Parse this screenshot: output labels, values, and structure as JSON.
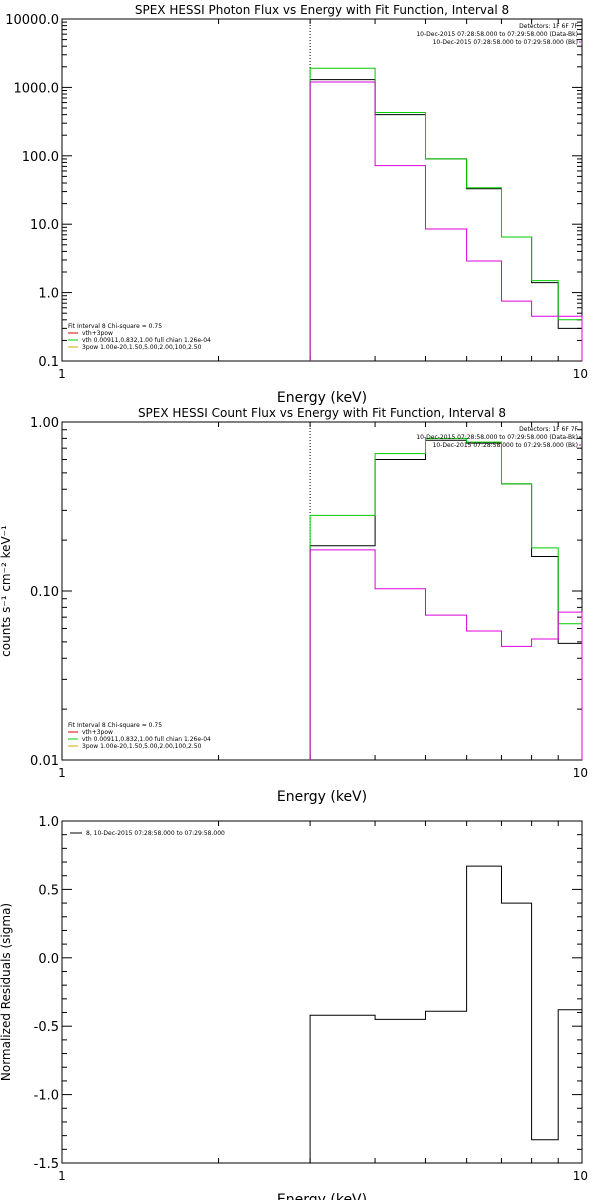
{
  "chart_data": [
    {
      "type": "line",
      "title": "SPEX HESSI Photon Flux vs Energy with Fit Function, Interval 8",
      "xlabel": "Energy (keV)",
      "ylabel": "",
      "xscale": "log",
      "yscale": "log",
      "xlim": [
        1,
        10
      ],
      "ylim": [
        0.1,
        10000
      ],
      "x_ticks": [
        {
          "v": 1,
          "label": "1"
        },
        {
          "v": 10,
          "label": "10"
        }
      ],
      "y_ticks": [
        {
          "v": 0.1,
          "label": "0.1"
        },
        {
          "v": 1,
          "label": "1.0"
        },
        {
          "v": 10,
          "label": "10.0"
        },
        {
          "v": 100,
          "label": "100.0"
        },
        {
          "v": 1000,
          "label": "1000.0"
        },
        {
          "v": 10000,
          "label": "10000.0"
        }
      ],
      "vline": 3,
      "bin_edges": [
        3,
        4,
        5,
        6,
        7,
        8,
        9,
        10
      ],
      "series": [
        {
          "color": "#000000",
          "values": [
            1300,
            400,
            90,
            33,
            6.5,
            1.4,
            0.3
          ]
        },
        {
          "color": "#00cc00",
          "values": [
            1900,
            430,
            90,
            34,
            6.5,
            1.5,
            0.4
          ]
        },
        {
          "color": "#dd00dd",
          "values": [
            1200,
            72,
            8.5,
            2.9,
            0.75,
            0.45,
            0.45
          ]
        }
      ],
      "info_lines": [
        {
          "text": "Detectors: 1F 6F 7F",
          "color": "#000000"
        },
        {
          "text": "10-Dec-2015 07:28:58.000 to 07:29:58.000 (Data-Bk)",
          "color": "#000000"
        },
        {
          "text": "10-Dec-2015 07:28:58.000 to 07:29:58.000 (Bk)",
          "color": "#dd00dd"
        }
      ],
      "legend": [
        {
          "text": "Fit Interval 8   Chi-square = 0.75",
          "color": "#000000"
        },
        {
          "text": "vth+3pow",
          "color": "#dd0000"
        },
        {
          "text": "vth 0.00911,0.832,1.00  full chian 1.26e-04",
          "color": "#00cc00"
        },
        {
          "text": "3pow 1.00e-20,1.50,5.00,2.00,100,2.50",
          "color": "#ccaa00"
        }
      ]
    },
    {
      "type": "line",
      "title": "SPEX HESSI Count Flux vs Energy with Fit Function, Interval 8",
      "xlabel": "Energy (keV)",
      "ylabel": "counts s⁻¹ cm⁻² keV⁻¹",
      "xscale": "log",
      "yscale": "log",
      "xlim": [
        1,
        10
      ],
      "ylim": [
        0.01,
        1.0
      ],
      "x_ticks": [
        {
          "v": 1,
          "label": "1"
        },
        {
          "v": 10,
          "label": "10"
        }
      ],
      "y_ticks": [
        {
          "v": 0.01,
          "label": "0.01"
        },
        {
          "v": 0.1,
          "label": "0.10"
        },
        {
          "v": 1,
          "label": "1.00"
        }
      ],
      "vline": 3,
      "bin_edges": [
        3,
        4,
        5,
        6,
        7,
        8,
        9,
        10
      ],
      "series": [
        {
          "color": "#000000",
          "values": [
            0.185,
            0.6,
            0.78,
            0.75,
            0.43,
            0.16,
            0.049
          ]
        },
        {
          "color": "#00cc00",
          "values": [
            0.28,
            0.65,
            0.8,
            0.76,
            0.43,
            0.18,
            0.064
          ]
        },
        {
          "color": "#dd00dd",
          "values": [
            0.175,
            0.103,
            0.072,
            0.058,
            0.047,
            0.052,
            0.075
          ]
        }
      ],
      "info_lines": [
        {
          "text": "Detectors: 1F 6F 7F",
          "color": "#000000"
        },
        {
          "text": "10-Dec-2015 07:28:58.000 to 07:29:58.000 (Data-Bk)",
          "color": "#000000"
        },
        {
          "text": "10-Dec-2015 07:28:58.000 to 07:29:58.000 (Bk)",
          "color": "#dd00dd"
        }
      ],
      "legend": [
        {
          "text": "Fit Interval 8   Chi-square = 0.75",
          "color": "#000000"
        },
        {
          "text": "vth+3pow",
          "color": "#dd0000"
        },
        {
          "text": "vth 0.00911,0.832,1.00  full chian 1.26e-04",
          "color": "#00cc00"
        },
        {
          "text": "3pow 1.00e-20,1.50,5.00,2.00,100,2.50",
          "color": "#ccaa00"
        }
      ]
    },
    {
      "type": "line",
      "title": "",
      "xlabel": "Energy (keV)",
      "ylabel": "Normalized Residuals (sigma)",
      "xscale": "log",
      "yscale": "linear",
      "xlim": [
        1,
        10
      ],
      "ylim": [
        -1.5,
        1.0
      ],
      "x_ticks": [
        {
          "v": 1,
          "label": "1"
        },
        {
          "v": 10,
          "label": "10"
        }
      ],
      "y_ticks": [
        {
          "v": -1.5,
          "label": "-1.5"
        },
        {
          "v": -1.0,
          "label": "-1.0"
        },
        {
          "v": -0.5,
          "label": "-0.5"
        },
        {
          "v": 0.0,
          "label": "0.0"
        },
        {
          "v": 0.5,
          "label": "0.5"
        },
        {
          "v": 1.0,
          "label": "1.0"
        }
      ],
      "bin_edges": [
        3,
        4,
        5,
        6,
        7,
        8,
        9,
        10
      ],
      "series": [
        {
          "color": "#000000",
          "values": [
            -0.42,
            -0.45,
            -0.39,
            0.67,
            0.4,
            -1.33,
            -0.38
          ]
        }
      ],
      "legend": [
        {
          "text": "8, 10-Dec-2015 07:28:58.000 to 07:29:58.000",
          "color": "#000000"
        }
      ]
    }
  ]
}
